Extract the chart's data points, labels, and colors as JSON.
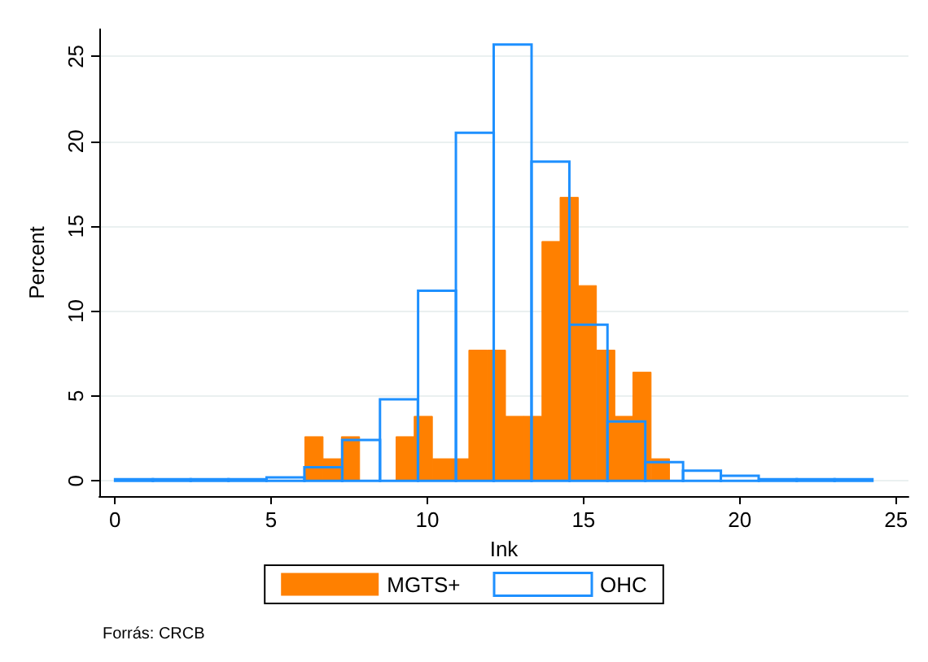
{
  "chart_data": {
    "type": "bar",
    "xlabel": "Ink",
    "ylabel": "Percent",
    "series": [
      {
        "name": "MGTS+",
        "color": "#ff8000",
        "x": [
          6.37,
          6.95,
          7.54,
          8.12,
          8.71,
          9.29,
          9.87,
          10.46,
          11.04,
          11.62,
          12.21,
          12.79,
          13.37,
          13.96,
          14.54,
          15.12,
          15.71,
          16.29,
          16.87,
          17.46
        ],
        "values": [
          2.6,
          1.3,
          2.6,
          0,
          0,
          2.6,
          3.8,
          1.3,
          1.3,
          7.7,
          7.7,
          3.8,
          3.8,
          14.1,
          16.7,
          11.5,
          7.7,
          3.8,
          6.4,
          1.3
        ]
      },
      {
        "name": "OHC",
        "color": "#1e90ff",
        "x": [
          0.61,
          1.82,
          3.03,
          4.24,
          5.46,
          6.67,
          7.88,
          9.09,
          10.31,
          11.52,
          12.73,
          13.94,
          15.16,
          16.37,
          17.58,
          18.79,
          20.0,
          21.22,
          22.43,
          23.64
        ],
        "values": [
          0.1,
          0.1,
          0.1,
          0.1,
          0.2,
          0.8,
          2.4,
          4.8,
          11.2,
          20.5,
          25.7,
          18.8,
          9.2,
          3.5,
          1.1,
          0.6,
          0.3,
          0.1,
          0.1,
          0.1
        ]
      }
    ],
    "xlim": [
      -0.5,
      25.4
    ],
    "xticks": [
      0,
      5,
      10,
      15,
      20,
      25
    ],
    "ylim": [
      -0.9,
      26.6
    ],
    "yticks": [
      0,
      5,
      10,
      15,
      20,
      25
    ],
    "grid": "y",
    "legend": "bottom",
    "annotations": [
      "Forrás: CRCB"
    ]
  }
}
